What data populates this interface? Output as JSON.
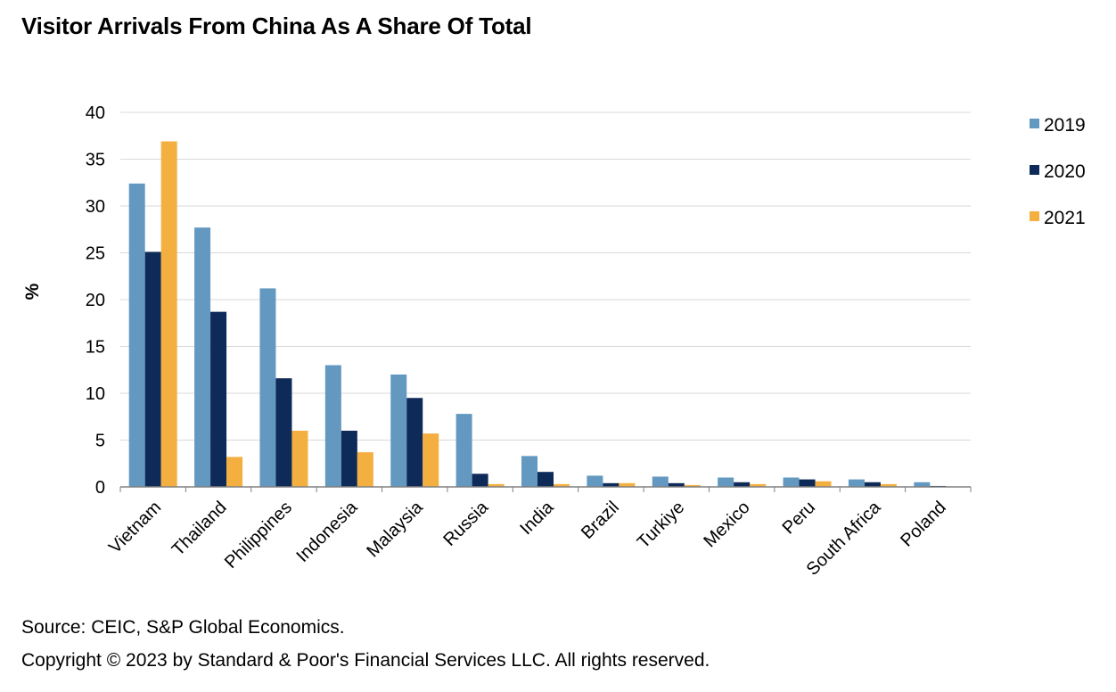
{
  "title": "Visitor Arrivals From China As A Share Of Total",
  "footer": {
    "source": "Source: CEIC, S&P Global Economics.",
    "copyright": "Copyright © 2023 by Standard & Poor's Financial Services LLC. All rights reserved."
  },
  "chart_data": {
    "type": "bar",
    "title": "Visitor Arrivals From China As A Share Of Total",
    "xlabel": "",
    "ylabel": "%",
    "ylim": [
      0,
      40
    ],
    "yticks": [
      0,
      5,
      10,
      15,
      20,
      25,
      30,
      35,
      40
    ],
    "grid": true,
    "legend_position": "right",
    "categories": [
      "Vietnam",
      "Thailand",
      "Philippines",
      "Indonesia",
      "Malaysia",
      "Russia",
      "India",
      "Brazil",
      "Turkiye",
      "Mexico",
      "Peru",
      "South Africa",
      "Poland"
    ],
    "series": [
      {
        "name": "2019",
        "color": "#6399C1",
        "values": [
          32.4,
          27.7,
          21.2,
          13.0,
          12.0,
          7.8,
          3.3,
          1.2,
          1.1,
          1.0,
          1.0,
          0.8,
          0.5
        ]
      },
      {
        "name": "2020",
        "color": "#0E2A58",
        "values": [
          25.1,
          18.7,
          11.6,
          6.0,
          9.5,
          1.4,
          1.6,
          0.4,
          0.4,
          0.5,
          0.8,
          0.5,
          0.1
        ]
      },
      {
        "name": "2021",
        "color": "#F3AF40",
        "values": [
          36.9,
          3.2,
          6.0,
          3.7,
          5.7,
          0.3,
          0.3,
          0.4,
          0.2,
          0.3,
          0.6,
          0.3,
          0.05
        ]
      }
    ]
  }
}
